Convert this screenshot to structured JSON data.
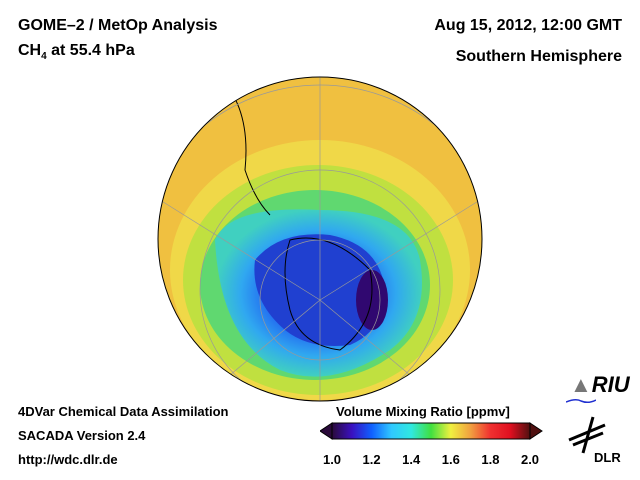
{
  "header": {
    "title": "GOME–2 / MetOp Analysis",
    "species": "CH",
    "species_sub": "4",
    "level": " at 55.4 hPa",
    "datetime": "Aug 15, 2012, 12:00 GMT",
    "region": "Southern Hemisphere"
  },
  "footer": {
    "line1": "4DVar Chemical Data Assimilation",
    "line2": "SACADA Version 2.4",
    "line3": "http://wdc.dlr.de"
  },
  "colorbar": {
    "title": "Volume Mixing Ratio [ppmv]",
    "ticks": [
      "1.0",
      "1.2",
      "1.4",
      "1.6",
      "1.8",
      "2.0"
    ],
    "colors": [
      "#2a0a3a",
      "#3a10c0",
      "#1060ff",
      "#30c8ff",
      "#30e8e0",
      "#40e040",
      "#f0f040",
      "#f0a040",
      "#f03030",
      "#e01020",
      "#501010"
    ]
  },
  "logos": {
    "riu": "RIU",
    "dlr": "DLR"
  }
}
